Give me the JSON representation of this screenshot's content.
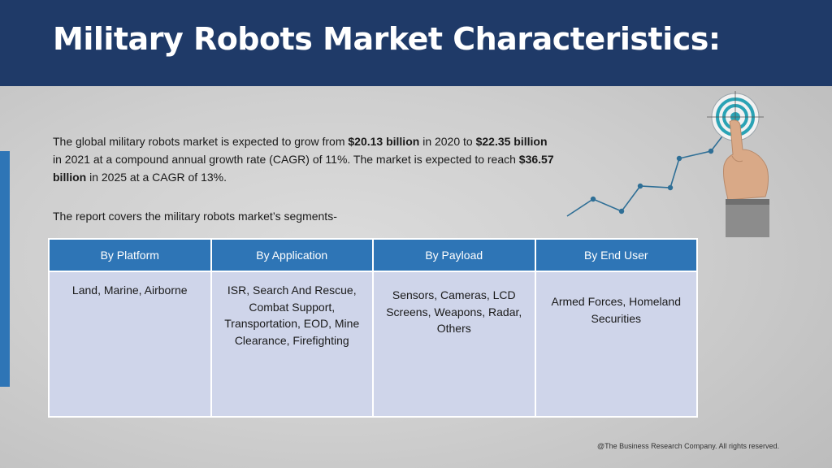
{
  "title": "Military Robots Market Characteristics:",
  "intro": {
    "p1": "The global military robots market is expected to grow from ",
    "v1": "$20.13 billion",
    "p2": " in 2020 to ",
    "v2": "$22.35 billion",
    "p3": " in 2021 at a compound annual growth rate (CAGR) of 11%. The market is expected to reach ",
    "v3": "$36.57 billion",
    "p4": " in 2025 at a CAGR of 13%."
  },
  "segments_intro": "The report covers the military robots market’s segments-",
  "table": {
    "headers": [
      "By Platform",
      "By Application",
      "By Payload",
      "By End User"
    ],
    "cells": [
      "Land, Marine, Airborne",
      "ISR, Search And Rescue, Combat Support, Transportation, EOD, Mine Clearance, Firefighting",
      "Sensors, Cameras, LCD Screens, Weapons, Radar, Others",
      "Armed Forces, Homeland Securities"
    ]
  },
  "footer": "@The Business Research Company. All rights reserved.",
  "colors": {
    "header_bg": "#1f3a68",
    "accent": "#2e75b6",
    "cell_bg": "#cfd5ea",
    "target_ring": "#2aa3b5"
  },
  "icons": [
    "growth-line-chart-icon",
    "target-icon",
    "pointing-hand-icon"
  ]
}
